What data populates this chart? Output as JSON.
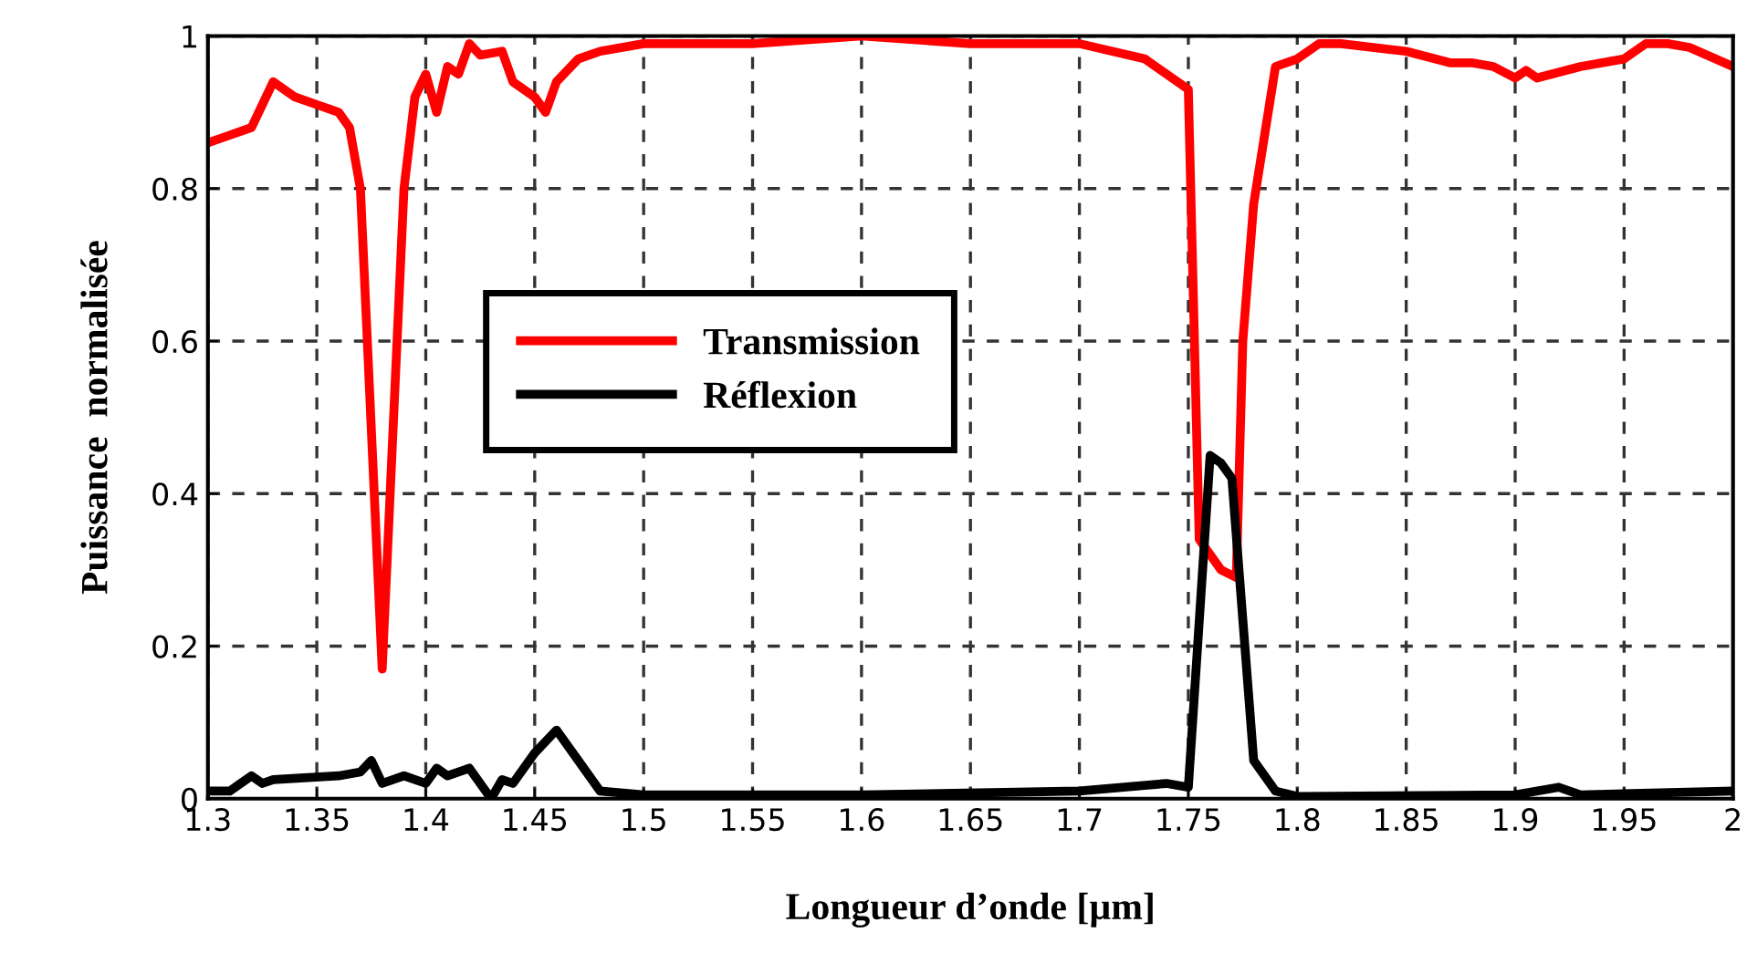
{
  "chart_data": {
    "type": "line",
    "xlabel": "Longueur d’onde [µm]",
    "ylabel": "Puissance  normalisée",
    "xlim": [
      1.3,
      2
    ],
    "ylim": [
      0,
      1
    ],
    "xticks": [
      1.3,
      1.35,
      1.4,
      1.45,
      1.5,
      1.55,
      1.6,
      1.65,
      1.7,
      1.75,
      1.8,
      1.85,
      1.9,
      1.95,
      2
    ],
    "yticks": [
      0,
      0.2,
      0.4,
      0.6,
      0.8,
      1
    ],
    "grid": true,
    "legend": "center left",
    "marker": "none",
    "line_style": "solid",
    "series": [
      {
        "name": "Transmission",
        "color": "#ff0000",
        "x": [
          1.3,
          1.31,
          1.32,
          1.33,
          1.34,
          1.35,
          1.36,
          1.365,
          1.37,
          1.38,
          1.39,
          1.395,
          1.4,
          1.405,
          1.41,
          1.415,
          1.42,
          1.425,
          1.435,
          1.44,
          1.45,
          1.455,
          1.46,
          1.47,
          1.48,
          1.5,
          1.55,
          1.6,
          1.65,
          1.7,
          1.73,
          1.75,
          1.755,
          1.765,
          1.772,
          1.775,
          1.78,
          1.79,
          1.8,
          1.81,
          1.82,
          1.85,
          1.87,
          1.88,
          1.89,
          1.9,
          1.905,
          1.91,
          1.93,
          1.95,
          1.96,
          1.97,
          1.98,
          2.0
        ],
        "values": [
          0.86,
          0.87,
          0.88,
          0.94,
          0.92,
          0.91,
          0.9,
          0.88,
          0.8,
          0.17,
          0.8,
          0.92,
          0.95,
          0.9,
          0.96,
          0.95,
          0.99,
          0.975,
          0.98,
          0.94,
          0.92,
          0.9,
          0.94,
          0.97,
          0.98,
          0.99,
          0.99,
          1.0,
          0.99,
          0.99,
          0.97,
          0.93,
          0.34,
          0.3,
          0.29,
          0.6,
          0.78,
          0.96,
          0.97,
          0.99,
          0.99,
          0.98,
          0.965,
          0.965,
          0.96,
          0.945,
          0.955,
          0.945,
          0.96,
          0.97,
          0.99,
          0.99,
          0.985,
          0.96
        ]
      },
      {
        "name": "Réflexion",
        "color": "#000000",
        "x": [
          1.3,
          1.31,
          1.32,
          1.325,
          1.33,
          1.36,
          1.37,
          1.375,
          1.38,
          1.39,
          1.4,
          1.405,
          1.41,
          1.42,
          1.43,
          1.435,
          1.44,
          1.45,
          1.46,
          1.47,
          1.48,
          1.5,
          1.6,
          1.7,
          1.74,
          1.75,
          1.76,
          1.765,
          1.77,
          1.78,
          1.79,
          1.8,
          1.9,
          1.92,
          1.93,
          2.0
        ],
        "values": [
          0.01,
          0.01,
          0.03,
          0.02,
          0.025,
          0.03,
          0.035,
          0.05,
          0.02,
          0.03,
          0.02,
          0.04,
          0.03,
          0.04,
          0.0,
          0.025,
          0.02,
          0.06,
          0.09,
          0.05,
          0.01,
          0.005,
          0.005,
          0.01,
          0.02,
          0.015,
          0.45,
          0.44,
          0.42,
          0.05,
          0.01,
          0.003,
          0.005,
          0.015,
          0.005,
          0.01
        ]
      }
    ]
  }
}
